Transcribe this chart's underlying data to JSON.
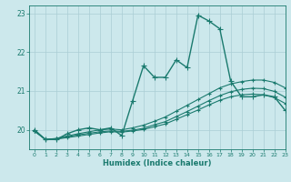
{
  "title": "",
  "xlabel": "Humidex (Indice chaleur)",
  "ylabel": "",
  "xlim": [
    -0.5,
    23
  ],
  "ylim": [
    19.5,
    23.2
  ],
  "bg_color": "#cce8ec",
  "line_color": "#1a7a6e",
  "grid_color": "#aacdd4",
  "xticks": [
    0,
    1,
    2,
    3,
    4,
    5,
    6,
    7,
    8,
    9,
    10,
    11,
    12,
    13,
    14,
    15,
    16,
    17,
    18,
    19,
    20,
    21,
    22,
    23
  ],
  "yticks": [
    20,
    21,
    22,
    23
  ],
  "series": [
    {
      "x": [
        0,
        1,
        2,
        3,
        4,
        5,
        6,
        7,
        8,
        9,
        10,
        11,
        12,
        13,
        14,
        15,
        16,
        17,
        18,
        19,
        20,
        21,
        22,
        23
      ],
      "y": [
        20.0,
        19.75,
        19.75,
        19.9,
        20.0,
        20.05,
        20.0,
        20.05,
        19.85,
        20.75,
        21.65,
        21.35,
        21.35,
        21.8,
        21.6,
        22.95,
        22.8,
        22.6,
        21.25,
        20.85,
        20.85,
        20.9,
        20.85,
        20.5
      ],
      "marker": "+",
      "markersize": 4,
      "linewidth": 1.0
    },
    {
      "x": [
        0,
        1,
        2,
        3,
        4,
        5,
        6,
        7,
        8,
        9,
        10,
        11,
        12,
        13,
        14,
        15,
        16,
        17,
        18,
        19,
        20,
        21,
        22,
        23
      ],
      "y": [
        19.98,
        19.75,
        19.78,
        19.84,
        19.9,
        19.95,
        20.0,
        20.02,
        20.0,
        20.05,
        20.12,
        20.22,
        20.33,
        20.48,
        20.63,
        20.78,
        20.93,
        21.08,
        21.18,
        21.24,
        21.28,
        21.28,
        21.22,
        21.08
      ],
      "marker": "+",
      "markersize": 3,
      "linewidth": 0.8
    },
    {
      "x": [
        0,
        1,
        2,
        3,
        4,
        5,
        6,
        7,
        8,
        9,
        10,
        11,
        12,
        13,
        14,
        15,
        16,
        17,
        18,
        19,
        20,
        21,
        22,
        23
      ],
      "y": [
        19.97,
        19.75,
        19.77,
        19.82,
        19.87,
        19.91,
        19.95,
        19.97,
        19.96,
        19.99,
        20.04,
        20.13,
        20.21,
        20.34,
        20.47,
        20.61,
        20.75,
        20.88,
        20.98,
        21.04,
        21.07,
        21.06,
        20.99,
        20.84
      ],
      "marker": "+",
      "markersize": 3,
      "linewidth": 0.8
    },
    {
      "x": [
        0,
        1,
        2,
        3,
        4,
        5,
        6,
        7,
        8,
        9,
        10,
        11,
        12,
        13,
        14,
        15,
        16,
        17,
        18,
        19,
        20,
        21,
        22,
        23
      ],
      "y": [
        19.96,
        19.75,
        19.76,
        19.8,
        19.84,
        19.88,
        19.92,
        19.95,
        19.94,
        19.97,
        20.01,
        20.08,
        20.15,
        20.27,
        20.39,
        20.51,
        20.64,
        20.76,
        20.85,
        20.9,
        20.92,
        20.9,
        20.83,
        20.68
      ],
      "marker": "+",
      "markersize": 3,
      "linewidth": 0.8
    }
  ]
}
